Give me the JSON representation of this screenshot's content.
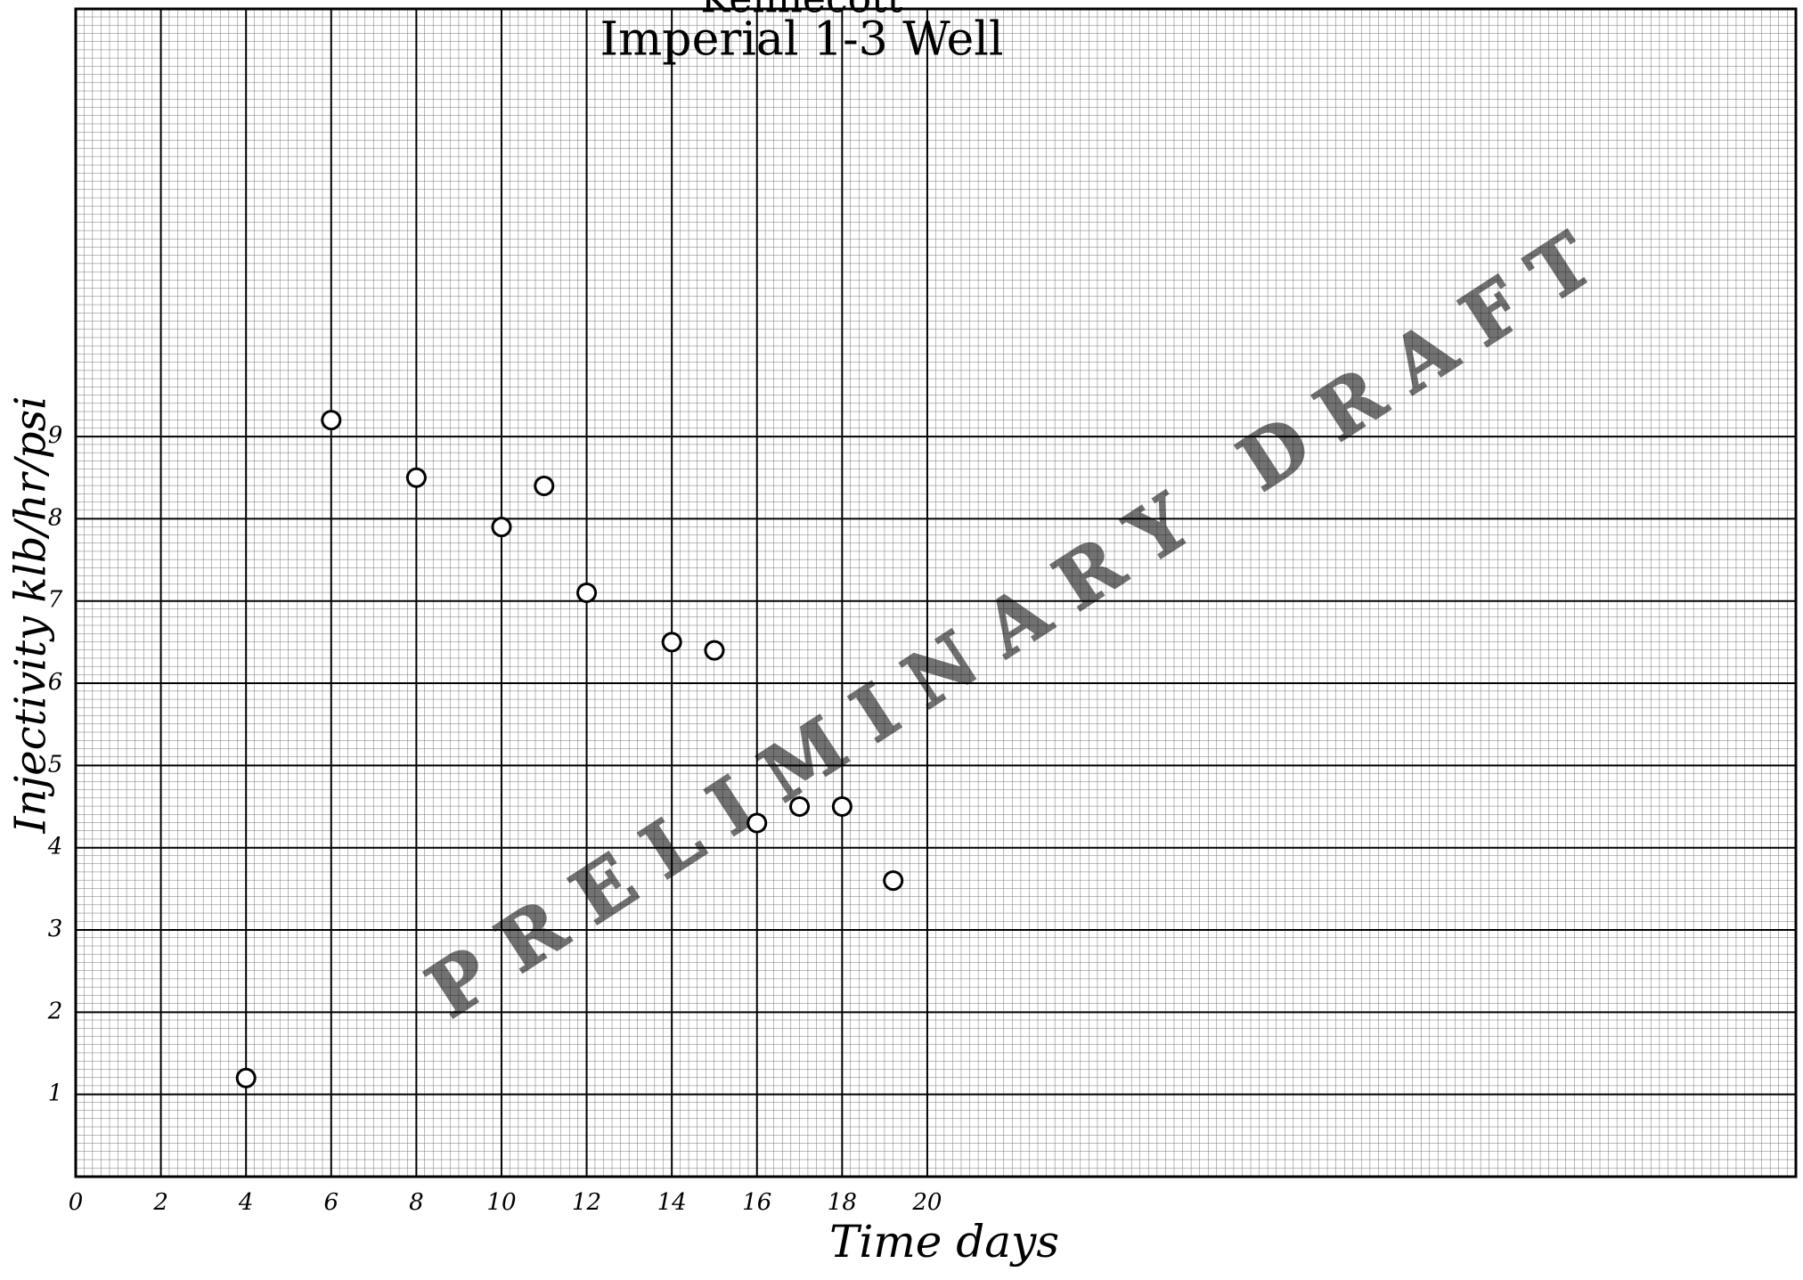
{
  "chart_data": {
    "type": "scatter",
    "header": "Kennecott",
    "title": "Imperial 1-3 Well",
    "watermark": "PRELIMINARY DRAFT",
    "x_label": "Time days",
    "y_label": "Injectivity klb/hr/psi",
    "x": [
      4,
      6,
      8,
      10,
      11,
      12,
      14,
      15,
      16,
      17,
      18,
      19.2
    ],
    "y": [
      1.2,
      9.2,
      8.5,
      7.9,
      8.4,
      7.1,
      6.5,
      6.4,
      4.3,
      4.5,
      4.5,
      3.6
    ],
    "color": "#000000",
    "xlim": [
      0,
      40.4
    ],
    "ylim": [
      0,
      14.2
    ],
    "xticks": [
      0,
      2,
      4,
      6,
      8,
      10,
      12,
      14,
      16,
      18,
      20
    ],
    "yticks": [
      1,
      2,
      3,
      4,
      5,
      6,
      7,
      8,
      9
    ],
    "grid": true
  }
}
